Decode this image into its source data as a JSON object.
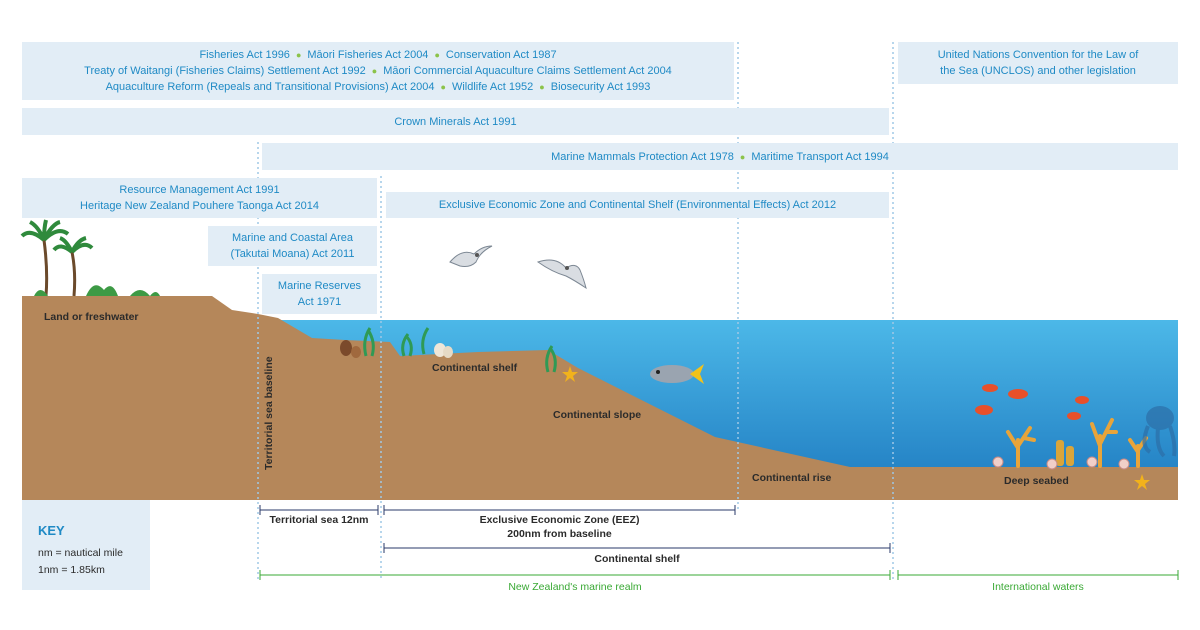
{
  "law_boxes": {
    "top_left": {
      "lines": [
        [
          "Fisheries Act 1996",
          "Māori Fisheries Act 2004",
          "Conservation Act 1987"
        ],
        [
          "Treaty of Waitangi (Fisheries Claims) Settlement Act 1992",
          "Māori Commercial Aquaculture Claims Settlement Act 2004"
        ],
        [
          "Aquaculture Reform (Repeals and Transitional Provisions) Act 2004",
          "Wildlife Act 1952",
          "Biosecurity Act 1993"
        ]
      ]
    },
    "unclos": {
      "line1": "United Nations Convention for the Law of",
      "line2": "the Sea (UNCLOS) and other legislation"
    },
    "crown_minerals": "Crown Minerals Act 1991",
    "marine_mammals": {
      "part1": "Marine Mammals Protection Act 1978",
      "part2": "Maritime Transport Act 1994"
    },
    "resource_mgmt": {
      "line1": "Resource Management Act 1991",
      "line2": "Heritage New Zealand Pouhere Taonga Act 2014"
    },
    "eez_act": "Exclusive Economic Zone and Continental Shelf (Environmental Effects) Act 2012",
    "marine_coastal": {
      "line1": "Marine and Coastal Area",
      "line2": "(Takutai Moana) Act 2011"
    },
    "marine_reserves": {
      "line1": "Marine Reserves",
      "line2": "Act 1971"
    }
  },
  "zone_labels": {
    "land": "Land or freshwater",
    "baseline": "Territorial sea baseline",
    "shelf": "Continental shelf",
    "slope": "Continental slope",
    "rise": "Continental rise",
    "seabed": "Deep seabed"
  },
  "key": {
    "title": "KEY",
    "nm": "nm = nautical mile",
    "conversion": "1nm = 1.85km"
  },
  "scales": {
    "territorial": "Territorial sea 12nm",
    "eez_line1": "Exclusive Economic Zone (EEZ)",
    "eez_line2": "200nm from baseline",
    "shelf": "Continental shelf",
    "nz_realm": "New Zealand's marine realm",
    "international": "International waters"
  },
  "colors": {
    "box_fill": "#e2edf6",
    "box_text": "#1f8ac5",
    "separator_dot": "#8bc34a",
    "land": "#b5875a",
    "sea_top": "#46b3e6",
    "sea_bottom": "#1f7fc3",
    "nz_line": "#3aa935",
    "scale_line": "#2a3a6a"
  }
}
